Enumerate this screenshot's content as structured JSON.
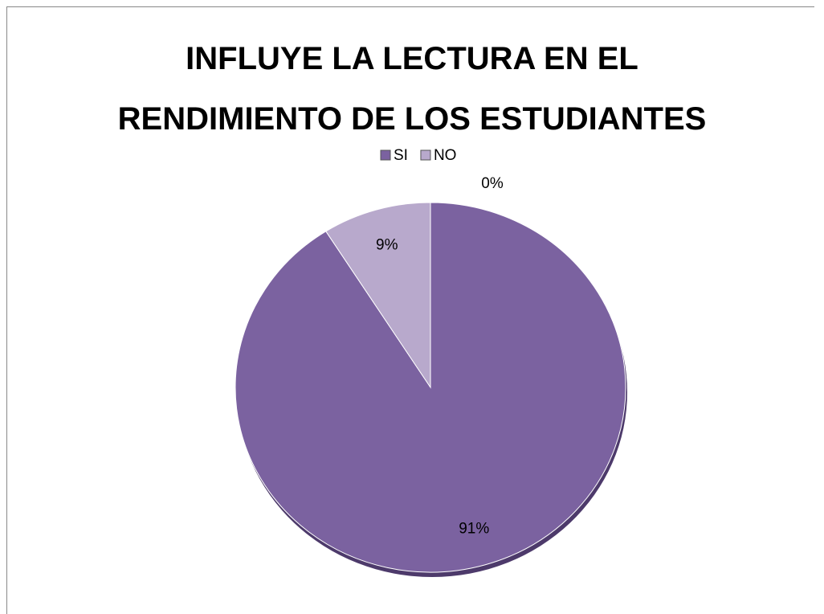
{
  "chart_data": {
    "type": "pie",
    "title": "INFLUYE LA LECTURA EN EL RENDIMIENTO DE LOS ESTUDIANTES",
    "categories": [
      "SI",
      "NO",
      null
    ],
    "values": [
      91,
      9,
      0
    ],
    "value_labels": [
      "91%",
      "9%",
      "0%"
    ],
    "colors": [
      "#7b62a0",
      "#b8a9cc",
      "#9bbb59"
    ],
    "legend": "top"
  }
}
